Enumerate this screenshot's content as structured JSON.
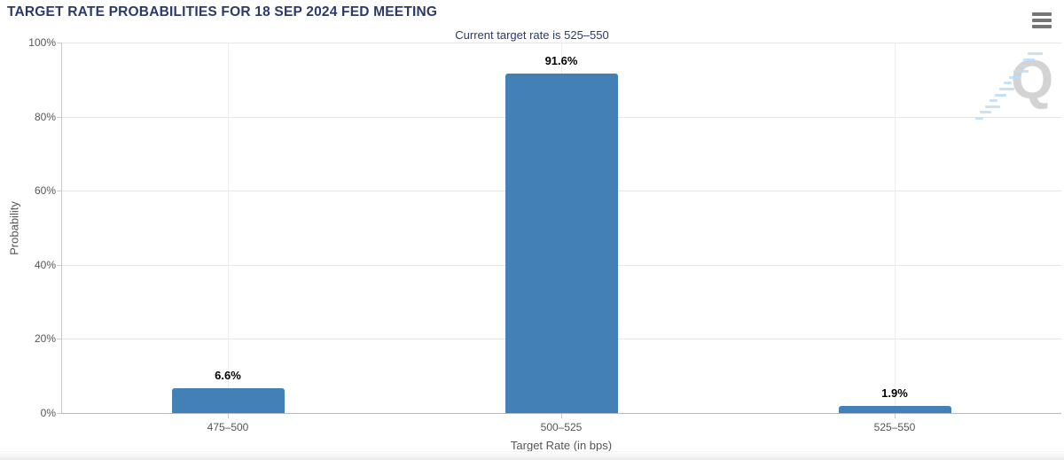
{
  "header": {
    "menu_icon": "hamburger-menu-icon"
  },
  "chart_data": {
    "type": "bar",
    "title": "TARGET RATE PROBABILITIES FOR 18 SEP 2024 FED MEETING",
    "subtitle": "Current target rate is 525–550",
    "categories": [
      "475–500",
      "500–525",
      "525–550"
    ],
    "values": [
      6.6,
      91.6,
      1.9
    ],
    "value_labels": [
      "6.6%",
      "91.6%",
      "1.9%"
    ],
    "xlabel": "Target Rate (in bps)",
    "ylabel": "Probability",
    "ylim": [
      0,
      100
    ],
    "ytick_values": [
      0,
      20,
      40,
      60,
      80,
      100
    ],
    "ytick_labels": [
      "0%",
      "20%",
      "40%",
      "60%",
      "80%",
      "100%"
    ],
    "grid": true,
    "legend": "none",
    "bar_color": "#4280B5"
  },
  "colors": {
    "title_text": "#2A3B69",
    "bar": "#4280B5",
    "axis_text": "#555555",
    "data_label": "#000000",
    "gridline": "#E6E6E6",
    "axis_line": "#B8B8B8",
    "menu_icon": "#757575",
    "watermark_letter": "#D3D3D3",
    "watermark_dash": "#BDDCF5"
  },
  "watermark": {
    "letter": "Q"
  }
}
